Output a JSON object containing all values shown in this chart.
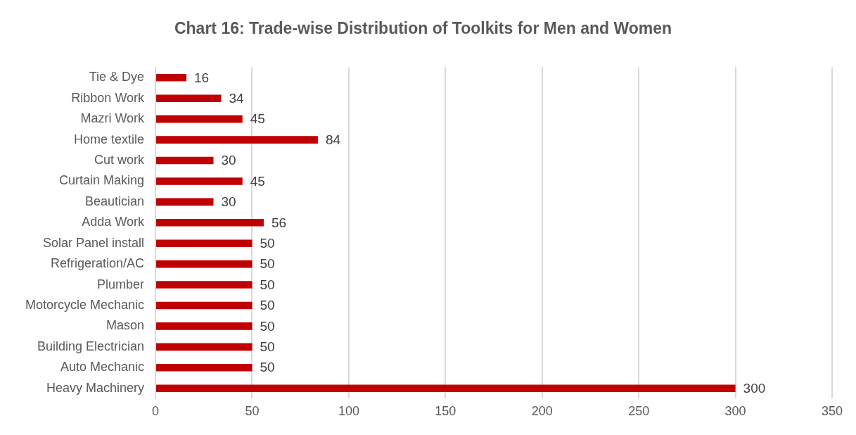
{
  "chart_data": {
    "type": "bar",
    "orientation": "horizontal",
    "title": "Chart 16: Trade-wise Distribution of Toolkits for Men and Women",
    "categories": [
      "Tie & Dye",
      "Ribbon Work",
      "Mazri Work",
      "Home textile",
      "Cut work",
      "Curtain Making",
      "Beautician",
      "Adda Work",
      "Solar Panel install",
      "Refrigeration/AC",
      "Plumber",
      "Motorcycle Mechanic",
      "Mason",
      "Building Electrician",
      "Auto Mechanic",
      "Heavy Machinery"
    ],
    "values": [
      16,
      34,
      45,
      84,
      30,
      45,
      30,
      56,
      50,
      50,
      50,
      50,
      50,
      50,
      50,
      300
    ],
    "color": "#c00000",
    "xlim": [
      0,
      350
    ],
    "xticks": [
      0,
      50,
      100,
      150,
      200,
      250,
      300,
      350
    ],
    "grid": "x",
    "legend": false,
    "data_labels": true
  }
}
